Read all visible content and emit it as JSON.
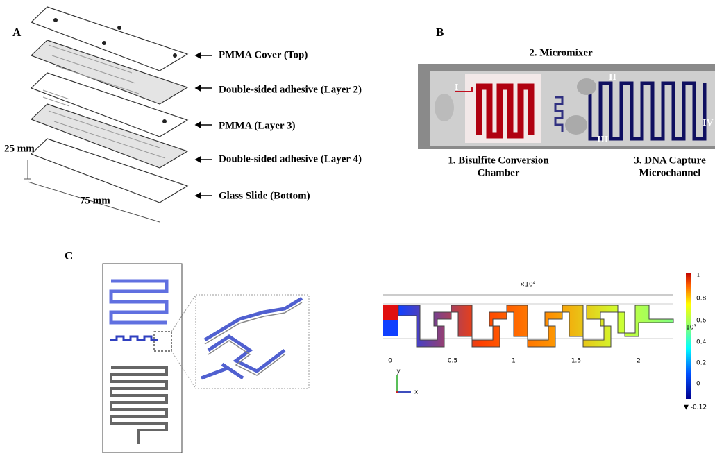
{
  "panel_a": {
    "letter": "A",
    "width_label": "25 mm",
    "length_label": "75 mm",
    "layers": [
      "PMMA Cover (Top)",
      "Double-sided adhesive (Layer 2)",
      "PMMA (Layer 3)",
      "Double-sided adhesive (Layer 4)",
      "Glass Slide (Bottom)"
    ]
  },
  "panel_b": {
    "letter": "B",
    "micromixer": "2. Micromixer",
    "ports": [
      "I",
      "II",
      "III",
      "IV"
    ],
    "chamber": [
      "1. Bisulfite Conversion",
      "Chamber"
    ],
    "capture": [
      "3. DNA Capture",
      "Microchannel"
    ]
  },
  "panel_c": {
    "letter": "C",
    "x_multiplier": "×10⁴",
    "x_ticks": [
      "0",
      "0.5",
      "1",
      "1.5",
      "2"
    ],
    "colorbar_ticks": [
      "1",
      "0.8",
      "0.6",
      "0.4",
      "0.2",
      "0"
    ],
    "colorbar_min": "▼ -0.12",
    "colorbar_multiplier": "10³",
    "axis_y": "y",
    "axis_x": "x"
  }
}
